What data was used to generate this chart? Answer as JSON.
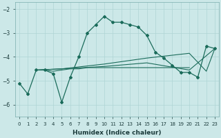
{
  "line1_x": [
    0,
    1,
    2,
    3,
    4,
    5,
    6,
    7,
    8,
    9,
    10,
    11,
    12,
    13,
    14,
    15,
    16,
    17,
    18,
    19,
    20,
    21,
    22,
    23
  ],
  "line1_y": [
    -5.1,
    -5.55,
    -4.55,
    -4.55,
    -4.7,
    -5.9,
    -4.85,
    -4.0,
    -3.0,
    -2.65,
    -2.3,
    -2.55,
    -2.55,
    -2.65,
    -2.75,
    -3.1,
    -3.8,
    -4.05,
    -4.35,
    -4.65,
    -4.65,
    -4.85,
    -3.55,
    -3.65
  ],
  "line2_x": [
    2,
    3,
    4,
    5,
    6,
    7,
    8,
    9,
    10,
    11,
    12,
    13,
    14,
    15,
    16,
    17,
    18,
    19,
    20
  ],
  "line2_y": [
    -4.55,
    -4.55,
    -4.6,
    -4.55,
    -4.5,
    -4.5,
    -4.45,
    -4.45,
    -4.45,
    -4.45,
    -4.45,
    -4.45,
    -4.45,
    -4.45,
    -4.45,
    -4.45,
    -4.45,
    -4.45,
    -4.45
  ],
  "line3_x": [
    2,
    5,
    10,
    15,
    20,
    22,
    23
  ],
  "line3_y": [
    -4.55,
    -4.5,
    -4.3,
    -4.05,
    -3.85,
    -4.6,
    -3.65
  ],
  "line4_x": [
    2,
    5,
    10,
    15,
    20,
    23
  ],
  "line4_y": [
    -4.55,
    -4.5,
    -4.4,
    -4.25,
    -4.55,
    -3.65
  ],
  "bg_color": "#cce8e8",
  "grid_color": "#afd4d4",
  "line_color": "#1a6b5a",
  "xlabel": "Humidex (Indice chaleur)",
  "xlim": [
    -0.5,
    23.5
  ],
  "ylim": [
    -6.5,
    -1.7
  ],
  "yticks": [
    -6,
    -5,
    -4,
    -3,
    -2
  ],
  "xticks": [
    0,
    1,
    2,
    3,
    4,
    5,
    6,
    7,
    8,
    9,
    10,
    11,
    12,
    13,
    14,
    15,
    16,
    17,
    18,
    19,
    20,
    21,
    22,
    23
  ]
}
